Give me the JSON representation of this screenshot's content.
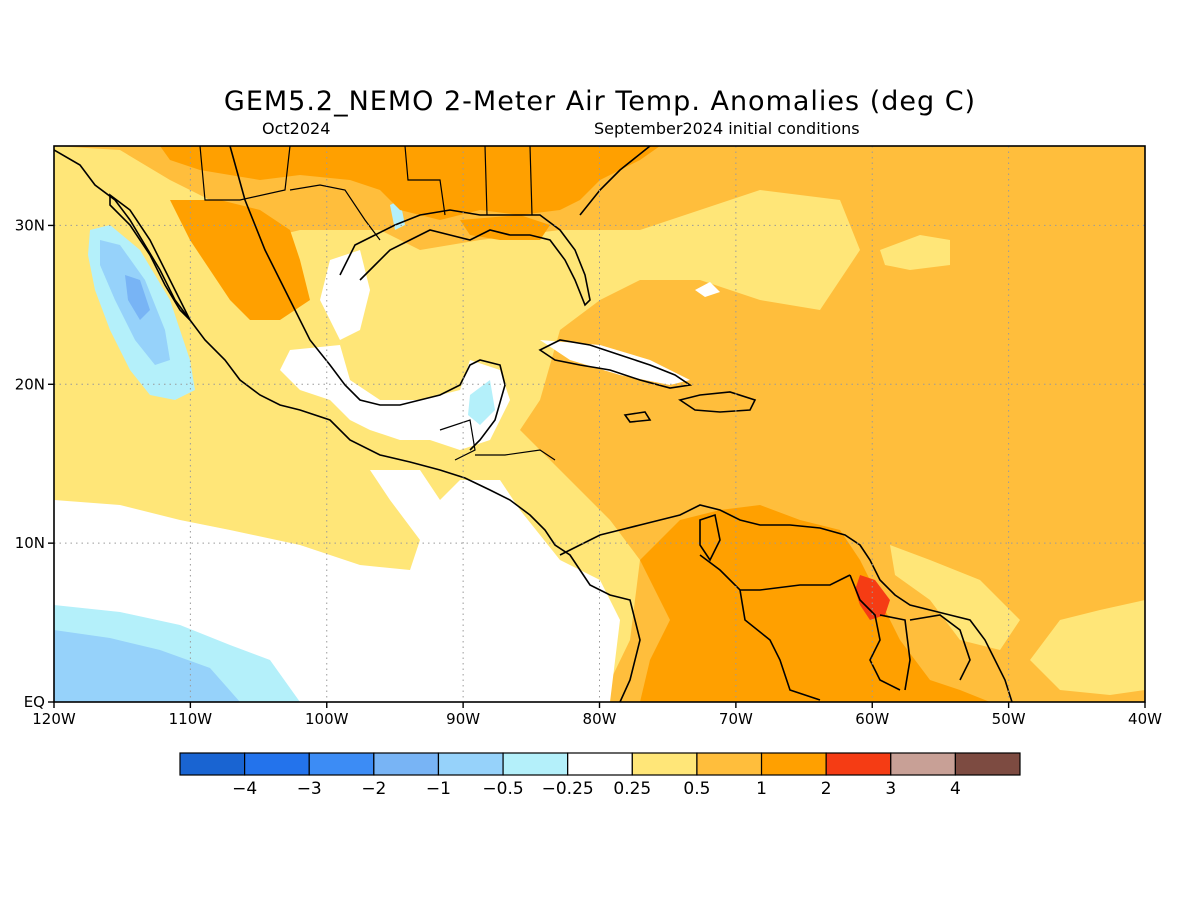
{
  "title": "GEM5.2_NEMO 2-Meter Air Temp. Anomalies (deg C)",
  "subtitle_left": "Oct2024",
  "subtitle_right": "September2024 initial conditions",
  "map": {
    "lon_range": [
      -120,
      -40
    ],
    "lat_range": [
      0,
      35
    ],
    "lon_ticks": [
      {
        "value": -120,
        "label": "120W"
      },
      {
        "value": -110,
        "label": "110W"
      },
      {
        "value": -100,
        "label": "100W"
      },
      {
        "value": -90,
        "label": "90W"
      },
      {
        "value": -80,
        "label": "80W"
      },
      {
        "value": -70,
        "label": "70W"
      },
      {
        "value": -60,
        "label": "60W"
      },
      {
        "value": -50,
        "label": "50W"
      },
      {
        "value": -40,
        "label": "40W"
      }
    ],
    "lat_ticks": [
      {
        "value": 0,
        "label": "EQ"
      },
      {
        "value": 10,
        "label": "10N"
      },
      {
        "value": 20,
        "label": "20N"
      },
      {
        "value": 30,
        "label": "30N"
      }
    ],
    "gridlines": true
  },
  "colorbar": {
    "colors": [
      "#1964d2",
      "#2373ec",
      "#3c8cf5",
      "#78b4f5",
      "#96d2fa",
      "#b4f0fa",
      "#ffffff",
      "#ffe678",
      "#ffbe3c",
      "#ffa000",
      "#f53c14",
      "#c8a096",
      "#7d4b41"
    ],
    "labels": [
      "-4",
      "-3",
      "-2",
      "-1",
      "-0.5",
      "-0.25",
      "0.25",
      "0.5",
      "1",
      "2",
      "3",
      "4"
    ]
  }
}
